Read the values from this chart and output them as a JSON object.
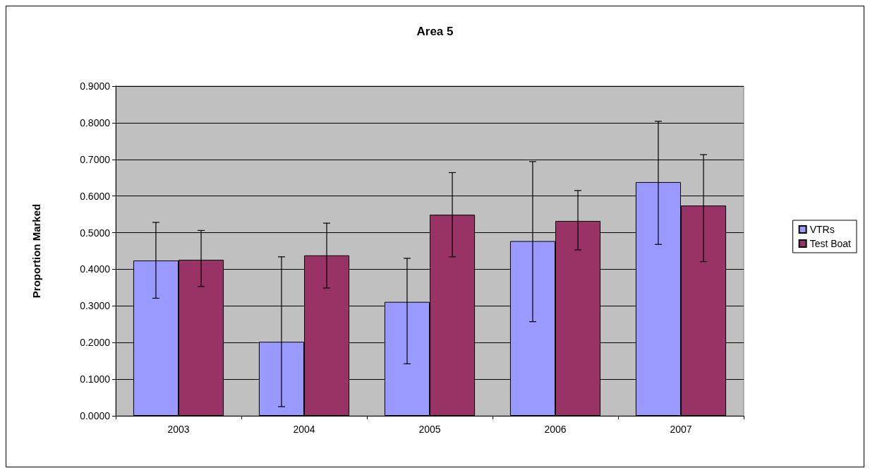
{
  "chart_data": {
    "type": "bar",
    "title": "Area 5",
    "ylabel": "Proportion Marked",
    "categories": [
      "2003",
      "2004",
      "2005",
      "2006",
      "2007"
    ],
    "series": [
      {
        "name": "VTRs",
        "color": "#9999ff",
        "values": [
          0.424,
          0.202,
          0.311,
          0.477,
          0.638
        ],
        "errors": [
          [
            0.321,
            0.528
          ],
          [
            0.025,
            0.434
          ],
          [
            0.142,
            0.43
          ],
          [
            0.257,
            0.694
          ],
          [
            0.468,
            0.804
          ]
        ]
      },
      {
        "name": "Test Boat",
        "color": "#993366",
        "values": [
          0.426,
          0.438,
          0.549,
          0.532,
          0.574
        ],
        "errors": [
          [
            0.353,
            0.506
          ],
          [
            0.349,
            0.526
          ],
          [
            0.434,
            0.664
          ],
          [
            0.453,
            0.615
          ],
          [
            0.421,
            0.713
          ]
        ]
      }
    ],
    "ylim": [
      0,
      0.9
    ],
    "yticks": [
      {
        "value": 0,
        "label": "0.0000"
      },
      {
        "value": 0.1,
        "label": "0.1000"
      },
      {
        "value": 0.2,
        "label": "0.2000"
      },
      {
        "value": 0.3,
        "label": "0.3000"
      },
      {
        "value": 0.4,
        "label": "0.4000"
      },
      {
        "value": 0.5,
        "label": "0.5000"
      },
      {
        "value": 0.6,
        "label": "0.6000"
      },
      {
        "value": 0.7,
        "label": "0.7000"
      },
      {
        "value": 0.8,
        "label": "0.8000"
      },
      {
        "value": 0.9,
        "label": "0.9000"
      }
    ],
    "grid": "y",
    "legend": "right"
  }
}
